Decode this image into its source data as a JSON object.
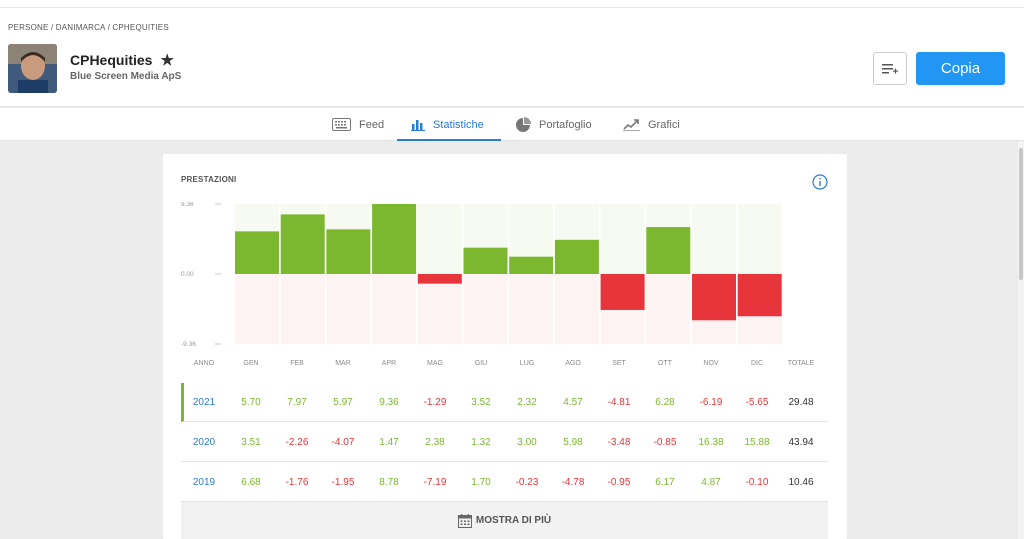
{
  "breadcrumb": "PERSONE / DANIMARCA / CPHEQUITIES",
  "profile": {
    "name": "CPHequities",
    "company": "Blue Screen Media ApS"
  },
  "actions": {
    "copy_label": "Copia",
    "list_icon": "add-to-list-icon"
  },
  "tabs": [
    {
      "label": "Feed",
      "icon": "keyboard-icon"
    },
    {
      "label": "Statistiche",
      "icon": "bar-chart-icon"
    },
    {
      "label": "Portafoglio",
      "icon": "pie-chart-icon"
    },
    {
      "label": "Grafici",
      "icon": "line-chart-icon"
    }
  ],
  "active_tab": "Statistiche",
  "card": {
    "title": "PRESTAZIONI",
    "show_more": "MOSTRA DI PIÙ"
  },
  "colors": {
    "accent": "#2196f3",
    "link": "#2a7bd6",
    "positive": "#7cb82f",
    "negative": "#e8353b"
  },
  "table": {
    "headers": [
      "ANNO",
      "GEN",
      "FEB",
      "MAR",
      "APR",
      "MAG",
      "GIU",
      "LUG",
      "AGO",
      "SET",
      "OTT",
      "NOV",
      "DIC",
      "TOTALE"
    ],
    "rows": [
      {
        "year": "2021",
        "values": [
          "5.70",
          "7.97",
          "5.97",
          "9.36",
          "-1.29",
          "3.52",
          "2.32",
          "4.57",
          "-4.81",
          "6.28",
          "-6.19",
          "-5.65"
        ],
        "total": "29.48"
      },
      {
        "year": "2020",
        "values": [
          "3.51",
          "-2.26",
          "-4.07",
          "1.47",
          "2.38",
          "1.32",
          "3.00",
          "5.98",
          "-3.48",
          "-0.85",
          "16.38",
          "15.88"
        ],
        "total": "43.94"
      },
      {
        "year": "2019",
        "values": [
          "6.68",
          "-1.76",
          "-1.95",
          "8.78",
          "-7.19",
          "1.70",
          "-0.23",
          "-4.78",
          "-0.95",
          "6.17",
          "4.87",
          "-0.10"
        ],
        "total": "10.46"
      }
    ]
  },
  "chart_data": {
    "type": "bar",
    "categories": [
      "GEN",
      "FEB",
      "MAR",
      "APR",
      "MAG",
      "GIU",
      "LUG",
      "AGO",
      "SET",
      "OTT",
      "NOV",
      "DIC"
    ],
    "values": [
      5.7,
      7.97,
      5.97,
      9.36,
      -1.29,
      3.52,
      2.32,
      4.57,
      -4.81,
      6.28,
      -6.19,
      -5.65
    ],
    "ylim": [
      -9.36,
      9.36
    ],
    "yticks": [
      "9.36",
      "0.00",
      "-9.36"
    ],
    "title": "PRESTAZIONI",
    "xlabel": "",
    "ylabel": "",
    "grid": false
  }
}
